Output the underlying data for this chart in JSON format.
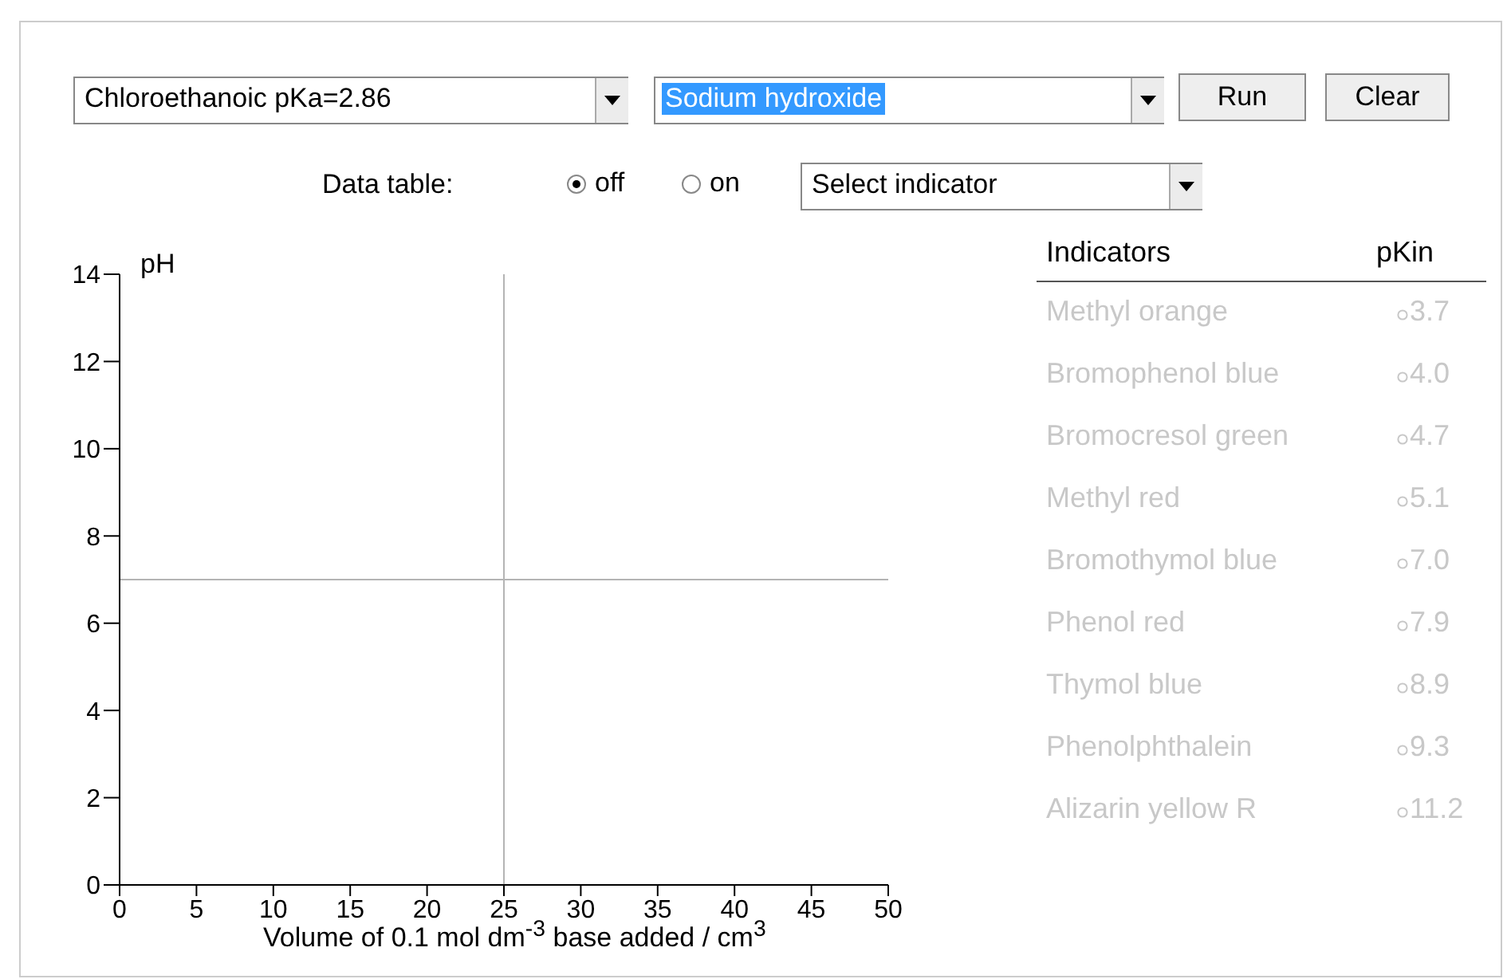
{
  "chart_data": [
    {
      "type": "line",
      "ylabel": "pH",
      "xlabel": "Volume of 0.1 mol dm$^{-3}$ base added / cm$^{3}$",
      "xlim": [
        0,
        50
      ],
      "xticks": [
        0,
        5,
        10,
        15,
        20,
        25,
        30,
        35,
        40,
        45,
        50
      ],
      "ylim": [
        0,
        14
      ],
      "yticks": [
        0,
        2,
        4,
        6,
        8,
        10,
        12,
        14
      ],
      "ref_lines": [
        {
          "axis": "x",
          "value": 25,
          "color": "#b4b4b4"
        },
        {
          "axis": "y",
          "value": 7,
          "color": "#b4b4b4"
        }
      ],
      "annotations": [
        "Chloroethanoic pKa=2.86",
        "Sodium hydroxide",
        "Run",
        "Clear",
        "Data table:",
        "off",
        "on",
        "Select indicator"
      ]
    },
    {
      "type": "other",
      "annotations": [
        "Indicators",
        "pKin",
        "Methyl orange",
        "3.7",
        "Bromophenol blue",
        "4.0",
        "Bromocresol green",
        "4.7",
        "Methyl red",
        "5.1",
        "Bromothymol blue",
        "7.0",
        "Phenol red",
        "7.9",
        "Thymol blue",
        "8.9",
        "Phenolphthalein",
        "9.3",
        "Alizarin yellow R",
        "11.2"
      ]
    }
  ]
}
